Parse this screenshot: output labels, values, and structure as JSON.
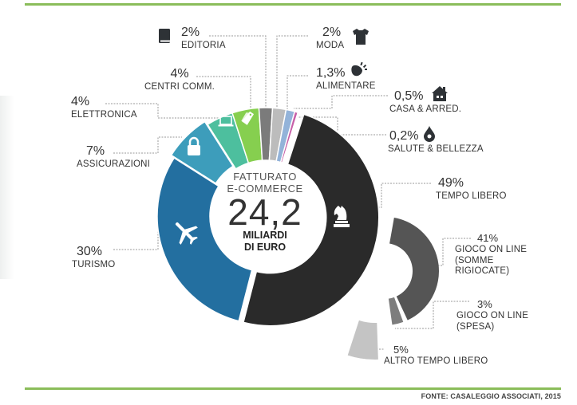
{
  "chart_data": {
    "type": "pie",
    "subtype": "donut",
    "title": "Fatturato e-commerce",
    "center_label": {
      "line1": "FATTURATO",
      "line2": "E-COMMERCE",
      "value": "24,2",
      "line3": "MILIARDI",
      "line4": "DI EURO"
    },
    "total_value": 24.2,
    "unit": "miliardi di euro",
    "start_angle_deg": 18,
    "slices": [
      {
        "label": "TEMPO LIBERO",
        "pct_label": "49%",
        "value": 49,
        "color": "#2a2a2a",
        "icon": "chess-knight-icon"
      },
      {
        "label": "TURISMO",
        "pct_label": "30%",
        "value": 30,
        "color": "#236fa0",
        "icon": "airplane-icon"
      },
      {
        "label": "ASSICURAZIONI",
        "pct_label": "7%",
        "value": 7,
        "color": "#3d9dbb",
        "icon": "padlock-icon"
      },
      {
        "label": "ELETTRONICA",
        "pct_label": "4%",
        "value": 4,
        "color": "#4dbf9e",
        "icon": "laptop-icon"
      },
      {
        "label": "CENTRI COMM.",
        "pct_label": "4%",
        "value": 4,
        "color": "#86cf4f",
        "icon": "tag-icon"
      },
      {
        "label": "EDITORIA",
        "pct_label": "2%",
        "value": 2,
        "color": "#7b7b7b",
        "icon": "book-icon"
      },
      {
        "label": "MODA",
        "pct_label": "2%",
        "value": 2,
        "color": "#bcbcbc",
        "icon": "tshirt-icon"
      },
      {
        "label": "ALIMENTARE",
        "pct_label": "1,3%",
        "value": 1.3,
        "color": "#93b3d9",
        "icon": "food-icon"
      },
      {
        "label": "CASA & ARRED.",
        "pct_label": "0,5%",
        "value": 0.5,
        "color": "#c760a8",
        "icon": "house-icon"
      },
      {
        "label": "SALUTE & BELLEZZA",
        "pct_label": "0,2%",
        "value": 0.2,
        "color": "#e0e0e0",
        "icon": "drop-icon"
      }
    ],
    "breakout": {
      "parent": "TEMPO LIBERO",
      "slices": [
        {
          "label": "GIOCO ON LINE (SOMME RIGIOCATE)",
          "pct_label": "41%",
          "value": 41,
          "color": "#555555"
        },
        {
          "label": "GIOCO ON LINE (SPESA)",
          "pct_label": "3%",
          "value": 3,
          "color": "#7d7d7d"
        },
        {
          "label": "ALTRO TEMPO LIBERO",
          "pct_label": "5%",
          "value": 5,
          "color": "#c4c4c4"
        }
      ]
    },
    "legend_position": "callout-labels",
    "source": "FONTE: CASALEGGIO ASSOCIATI, 2015"
  },
  "labels": {
    "editoria": {
      "pct": "2%",
      "name": "EDITORIA"
    },
    "centri": {
      "pct": "4%",
      "name": "CENTRI COMM."
    },
    "elettronica": {
      "pct": "4%",
      "name": "ELETTRONICA"
    },
    "assicurazioni": {
      "pct": "7%",
      "name": "ASSICURAZIONI"
    },
    "turismo": {
      "pct": "30%",
      "name": "TURISMO"
    },
    "moda": {
      "pct": "2%",
      "name": "MODA"
    },
    "alimentare": {
      "pct": "1,3%",
      "name": "ALIMENTARE"
    },
    "casa": {
      "pct": "0,5%",
      "name": "CASA & ARRED."
    },
    "salute": {
      "pct": "0,2%",
      "name": "SALUTE & BELLEZZA"
    },
    "tempo_libero": {
      "pct": "49%",
      "name": "TEMPO LIBERO"
    },
    "gioco_rigiocate": {
      "pct": "41%",
      "name1": "GIOCO ON LINE",
      "name2": "(SOMME",
      "name3": "RIGIOCATE)"
    },
    "gioco_spesa": {
      "pct": "3%",
      "name1": "GIOCO ON LINE",
      "name2": "(SPESA)"
    },
    "altro": {
      "pct": "5%",
      "name": "ALTRO TEMPO LIBERO"
    }
  },
  "center": {
    "line1": "FATTURATO",
    "line2": "E-COMMERCE",
    "value": "24,2",
    "line3": "MILIARDI",
    "line4": "DI EURO"
  },
  "footer": {
    "source": "FONTE: CASALEGGIO ASSOCIATI, 2015"
  },
  "colors": {
    "accent_rule": "#8bbd5a",
    "text": "#333333"
  }
}
